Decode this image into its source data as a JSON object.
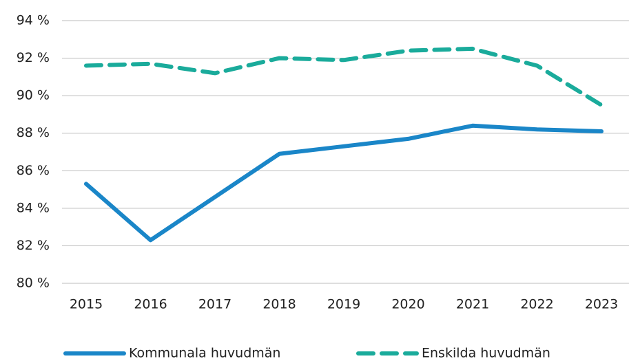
{
  "chart_data": {
    "type": "line",
    "categories": [
      "2015",
      "2016",
      "2017",
      "2018",
      "2019",
      "2020",
      "2021",
      "2022",
      "2023"
    ],
    "series": [
      {
        "name": "Kommunala huvudmän",
        "color": "#1a86c8",
        "dash": "solid",
        "values": [
          85.3,
          82.3,
          84.6,
          86.9,
          87.3,
          87.7,
          88.4,
          88.2,
          88.1
        ]
      },
      {
        "name": "Enskilda huvudmän",
        "color": "#1aab9b",
        "dash": "dashed",
        "values": [
          91.6,
          91.7,
          91.2,
          92.0,
          91.9,
          92.4,
          92.5,
          91.6,
          89.5
        ]
      }
    ],
    "ylim": [
      80,
      94
    ],
    "yticks": [
      {
        "value": 80,
        "label": "80 %"
      },
      {
        "value": 82,
        "label": "82 %"
      },
      {
        "value": 84,
        "label": "84 %"
      },
      {
        "value": 86,
        "label": "86 %"
      },
      {
        "value": 88,
        "label": "88 %"
      },
      {
        "value": 90,
        "label": "90 %"
      },
      {
        "value": 92,
        "label": "92 %"
      },
      {
        "value": 94,
        "label": "94 %"
      }
    ],
    "grid": true,
    "legend": "bottom"
  }
}
